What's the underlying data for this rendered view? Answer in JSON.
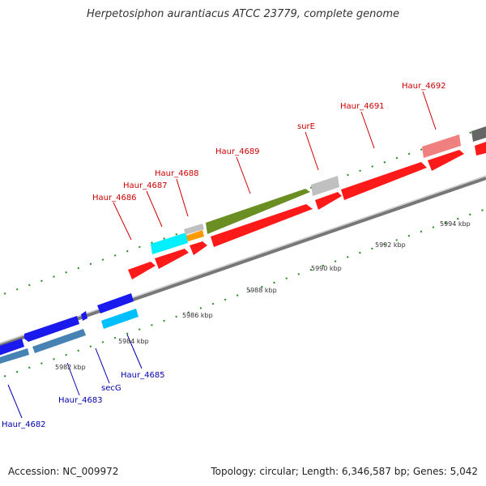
{
  "title": "Herpetosiphon aurantiacus ATCC 23779, complete genome",
  "footer": {
    "accession": "Accession: NC_009972",
    "summary": "Topology: circular; Length: 6,346,587 bp; Genes: 5,042"
  },
  "colors": {
    "backbone": "#999999",
    "tick": "#1f8a1f",
    "forward_gene": "#ff1a1a",
    "reverse_gene": "#1a1aee",
    "forward_label": "#cc0000",
    "reverse_label": "#0000aa",
    "kbp_label": "#333333"
  },
  "scale": {
    "unit": "kbp",
    "labels": [
      "5982 kbp",
      "5984 kbp",
      "5986 kbp",
      "5988 kbp",
      "5990 kbp",
      "5992 kbp",
      "5994 kbp"
    ]
  },
  "genes_forward": [
    {
      "label": "Haur_4686",
      "color": "#ff1a1a"
    },
    {
      "label": "Haur_4687",
      "color": "#00e5ff"
    },
    {
      "label": "Haur_4688",
      "color": "#ff9900"
    },
    {
      "label": "Haur_4689",
      "color": "#6b8e23"
    },
    {
      "label": "surE",
      "color": "#c0c0c0"
    },
    {
      "label": "Haur_4691",
      "color": "#ff1a1a"
    },
    {
      "label": "Haur_4692",
      "color": "#f08080"
    }
  ],
  "genes_reverse": [
    {
      "label": "Haur_4682",
      "color": "#4682b4"
    },
    {
      "label": "Haur_4683",
      "color": "#4682b4"
    },
    {
      "label": "secG",
      "color": "#1a1aee"
    },
    {
      "label": "Haur_4685",
      "color": "#1a1aee"
    }
  ]
}
